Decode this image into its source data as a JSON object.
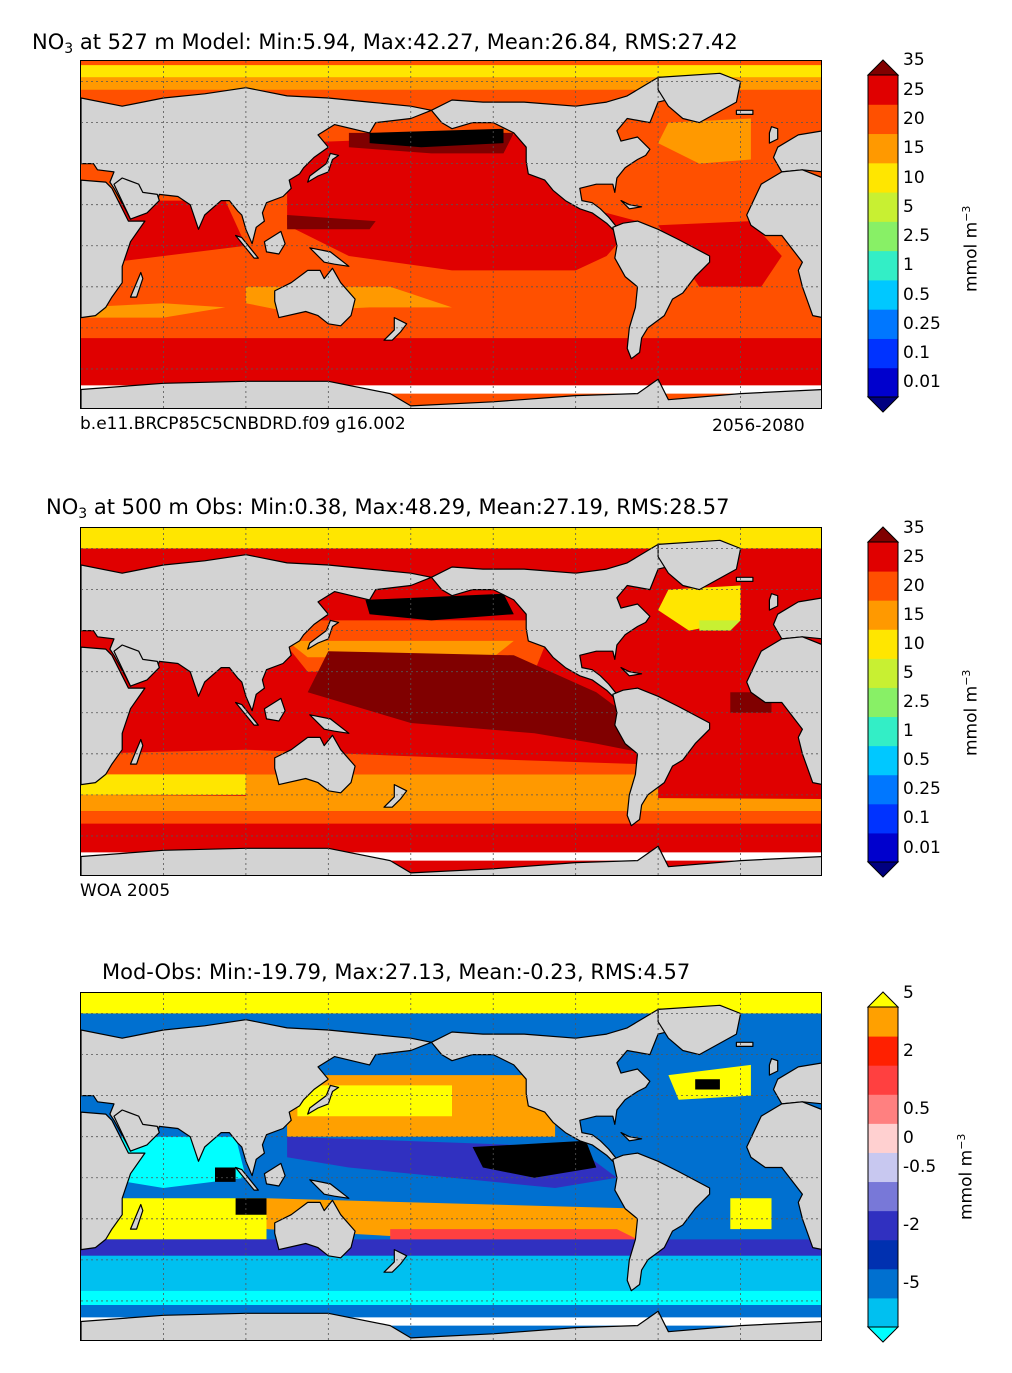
{
  "chart_data": [
    {
      "type": "heatmap",
      "title": "at 527 m Model: Min:5.94, Max:42.27, Mean:26.84, RMS:27.42",
      "title_prefix": "NO",
      "title_sub": "3",
      "footer_left": "b.e11.BRCP85C5CNBDRD.f09 g16.002",
      "footer_right": "2056-2080",
      "stats": {
        "min": 5.94,
        "max": 42.27,
        "mean": 26.84,
        "rms": 27.42
      },
      "depth_m": 527,
      "colorbar": {
        "levels": [
          "0.01",
          "0.1",
          "0.25",
          "0.5",
          "1",
          "2.5",
          "5",
          "10",
          "15",
          "20",
          "25",
          "35"
        ],
        "colors": [
          "#000080",
          "#0000cd",
          "#0033ff",
          "#0077ff",
          "#00c8ff",
          "#33eec6",
          "#88f066",
          "#c8f032",
          "#ffe600",
          "#ff9900",
          "#ff5000",
          "#e00000",
          "#800000"
        ],
        "unit": "mmol m",
        "unit_exp": "−3"
      }
    },
    {
      "type": "heatmap",
      "title": "at 500 m Obs: Min:0.38, Max:48.29, Mean:27.19, RMS:28.57",
      "title_prefix": "NO",
      "title_sub": "3",
      "footer_left": "WOA 2005",
      "stats": {
        "min": 0.38,
        "max": 48.29,
        "mean": 27.19,
        "rms": 28.57
      },
      "depth_m": 500,
      "colorbar": {
        "levels": [
          "0.01",
          "0.1",
          "0.25",
          "0.5",
          "1",
          "2.5",
          "5",
          "10",
          "15",
          "20",
          "25",
          "35"
        ],
        "colors": [
          "#000080",
          "#0000cd",
          "#0033ff",
          "#0077ff",
          "#00c8ff",
          "#33eec6",
          "#88f066",
          "#c8f032",
          "#ffe600",
          "#ff9900",
          "#ff5000",
          "#e00000",
          "#800000"
        ],
        "unit": "mmol m",
        "unit_exp": "−3"
      }
    },
    {
      "type": "heatmap",
      "title": "Mod-Obs: Min:-19.79, Max:27.13, Mean:-0.23, RMS:4.57",
      "stats": {
        "min": -19.79,
        "max": 27.13,
        "mean": -0.23,
        "rms": 4.57
      },
      "colorbar": {
        "tick_labels": [
          "-5",
          "-2",
          "-0.5",
          "0",
          "0.5",
          "2",
          "5"
        ],
        "tick_boundary_index": [
          2,
          4,
          6,
          7,
          8,
          10,
          12
        ],
        "colors": [
          "#00ffff",
          "#00c0f0",
          "#0070d0",
          "#0030b0",
          "#3030c0",
          "#7878d8",
          "#c8c8f0",
          "#ffd0d0",
          "#ff8080",
          "#ff4040",
          "#ff2000",
          "#ffa000",
          "#ffff00"
        ],
        "unit": "mmol m",
        "unit_exp": "−3"
      }
    }
  ]
}
